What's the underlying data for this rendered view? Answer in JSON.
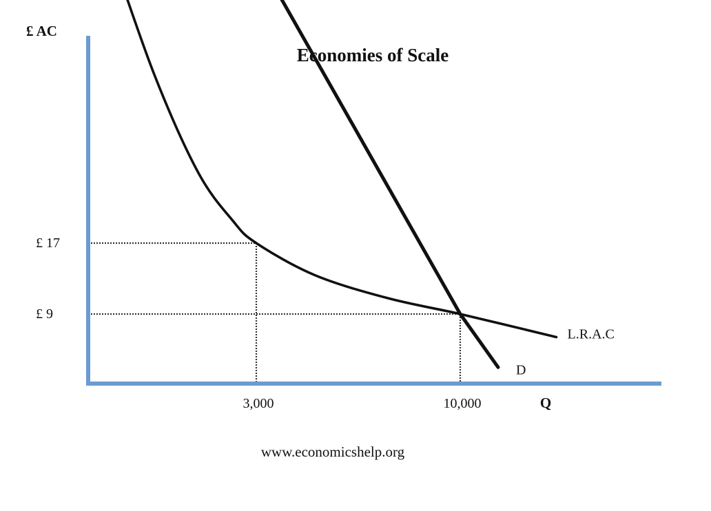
{
  "chart_data": {
    "type": "line",
    "title": "Economies of Scale",
    "ylabel": "£ AC",
    "xlabel": "Q",
    "source": "www.economicshelp.org",
    "colors": {
      "axis": "#6b9bd2",
      "curve": "#111111",
      "guide": "#333333"
    },
    "x_ticks": [
      {
        "value": 3000,
        "label": "3,000"
      },
      {
        "value": 10000,
        "label": "10,000"
      }
    ],
    "y_ticks": [
      {
        "value": 17,
        "label": "£ 17"
      },
      {
        "value": 9,
        "label": "£ 9"
      }
    ],
    "series": [
      {
        "name": "L.R.A.C",
        "points": [
          {
            "x": -2000,
            "y": 50
          },
          {
            "x": -500,
            "y": 36
          },
          {
            "x": 1000,
            "y": 25
          },
          {
            "x": 2200,
            "y": 19.5
          },
          {
            "x": 3000,
            "y": 17
          },
          {
            "x": 5000,
            "y": 13.4
          },
          {
            "x": 7500,
            "y": 10.8
          },
          {
            "x": 10000,
            "y": 9
          },
          {
            "x": 13300,
            "y": 6.4
          }
        ]
      },
      {
        "name": "D",
        "points": [
          {
            "x": 2400,
            "y": 53
          },
          {
            "x": 10000,
            "y": 9
          },
          {
            "x": 11300,
            "y": 3
          }
        ]
      }
    ],
    "guides": [
      {
        "x": 3000,
        "y": 17
      },
      {
        "x": 10000,
        "y": 9
      }
    ]
  }
}
